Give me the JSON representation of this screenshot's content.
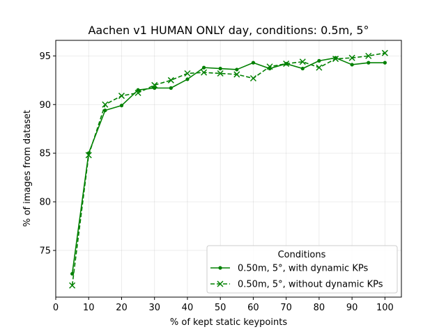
{
  "chart_data": {
    "type": "line",
    "title": "Aachen v1 HUMAN ONLY day, conditions: 0.5m, 5°",
    "xlabel": "% of kept static keypoints",
    "ylabel": "% of images from dataset",
    "xlim": [
      0,
      105
    ],
    "ylim": [
      70.2,
      96.6
    ],
    "xticks": [
      0,
      10,
      20,
      30,
      40,
      50,
      60,
      70,
      80,
      90,
      100
    ],
    "yticks": [
      75,
      80,
      85,
      90,
      95
    ],
    "grid": true,
    "legend": {
      "title": "Conditions",
      "placement": "lower-right"
    },
    "x": [
      5,
      10,
      15,
      20,
      25,
      30,
      35,
      40,
      45,
      50,
      55,
      60,
      65,
      70,
      75,
      80,
      85,
      90,
      95,
      100
    ],
    "series": [
      {
        "name": "0.50m, 5°, with dynamic KPs",
        "color": "#008000",
        "line_style": "solid",
        "marker": "dot",
        "values": [
          72.6,
          85.0,
          89.4,
          89.9,
          91.5,
          91.7,
          91.7,
          92.6,
          93.8,
          93.7,
          93.6,
          94.3,
          93.7,
          94.2,
          93.7,
          94.5,
          94.8,
          94.1,
          94.3,
          94.3
        ]
      },
      {
        "name": "0.50m, 5°, without dynamic KPs",
        "color": "#008000",
        "line_style": "dashed",
        "marker": "x",
        "values": [
          71.4,
          84.8,
          90.0,
          90.9,
          91.2,
          92.0,
          92.5,
          93.2,
          93.3,
          93.2,
          93.1,
          92.7,
          93.9,
          94.2,
          94.4,
          93.8,
          94.7,
          94.8,
          95.0,
          95.3
        ]
      }
    ]
  }
}
